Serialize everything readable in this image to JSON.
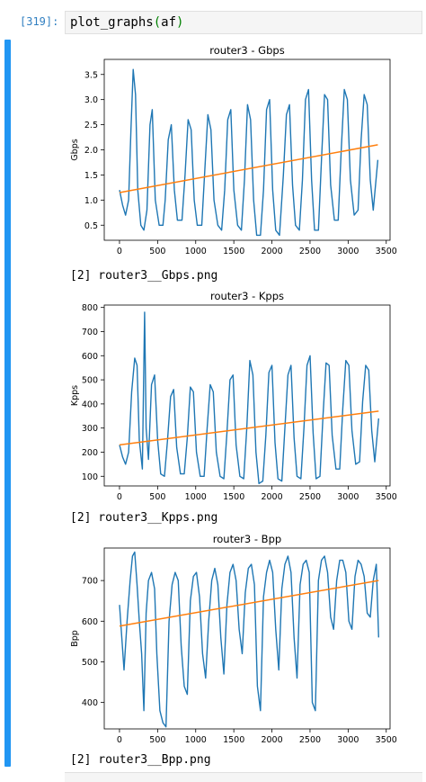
{
  "cell": {
    "prompt": "[319]:",
    "code_fn": "plot_graphs",
    "code_open": "(",
    "code_arg": "af",
    "code_close": ")"
  },
  "outputs": [
    {
      "text": "[2] router3__Gbps.png"
    },
    {
      "text": "[2] router3__Kpps.png"
    },
    {
      "text": "[2] router3__Bpp.png"
    }
  ],
  "colors": {
    "series": "#1f77b4",
    "trend": "#ff7f0e",
    "prompt": "#307fc1",
    "collapser": "#2196f3"
  },
  "chart_data": [
    {
      "type": "line",
      "title": "router3 - Gbps",
      "xlabel": "",
      "ylabel": "Gbps",
      "xlim": [
        -200,
        3550
      ],
      "ylim": [
        0.2,
        3.8
      ],
      "xticks": [
        0,
        500,
        1000,
        1500,
        2000,
        2500,
        3000,
        3500
      ],
      "yticks": [
        0.5,
        1.0,
        1.5,
        2.0,
        2.5,
        3.0,
        3.5
      ],
      "ytick_labels": [
        "0.5",
        "1.0",
        "1.5",
        "2.0",
        "2.5",
        "3.0",
        "3.5"
      ],
      "series": [
        {
          "points": [
            [
              0,
              1.2
            ],
            [
              40,
              0.9
            ],
            [
              80,
              0.7
            ],
            [
              120,
              1.0
            ],
            [
              150,
              2.4
            ],
            [
              180,
              3.6
            ],
            [
              210,
              3.1
            ],
            [
              240,
              1.2
            ],
            [
              280,
              0.5
            ],
            [
              320,
              0.4
            ],
            [
              360,
              0.8
            ],
            [
              400,
              2.5
            ],
            [
              430,
              2.8
            ],
            [
              470,
              1.0
            ],
            [
              520,
              0.5
            ],
            [
              570,
              0.5
            ],
            [
              600,
              1.0
            ],
            [
              640,
              2.2
            ],
            [
              680,
              2.5
            ],
            [
              720,
              1.2
            ],
            [
              760,
              0.6
            ],
            [
              820,
              0.6
            ],
            [
              860,
              1.5
            ],
            [
              900,
              2.6
            ],
            [
              940,
              2.4
            ],
            [
              980,
              1.0
            ],
            [
              1020,
              0.5
            ],
            [
              1080,
              0.5
            ],
            [
              1120,
              1.6
            ],
            [
              1160,
              2.7
            ],
            [
              1200,
              2.4
            ],
            [
              1240,
              1.0
            ],
            [
              1290,
              0.5
            ],
            [
              1340,
              0.4
            ],
            [
              1380,
              1.2
            ],
            [
              1420,
              2.6
            ],
            [
              1460,
              2.8
            ],
            [
              1500,
              1.2
            ],
            [
              1550,
              0.5
            ],
            [
              1600,
              0.4
            ],
            [
              1640,
              1.4
            ],
            [
              1680,
              2.9
            ],
            [
              1720,
              2.6
            ],
            [
              1760,
              1.0
            ],
            [
              1800,
              0.3
            ],
            [
              1850,
              0.3
            ],
            [
              1890,
              1.2
            ],
            [
              1930,
              2.8
            ],
            [
              1970,
              3.0
            ],
            [
              2010,
              1.2
            ],
            [
              2050,
              0.4
            ],
            [
              2100,
              0.3
            ],
            [
              2150,
              1.5
            ],
            [
              2190,
              2.7
            ],
            [
              2230,
              2.9
            ],
            [
              2270,
              1.3
            ],
            [
              2310,
              0.5
            ],
            [
              2360,
              0.4
            ],
            [
              2400,
              1.4
            ],
            [
              2440,
              3.0
            ],
            [
              2480,
              3.2
            ],
            [
              2520,
              1.4
            ],
            [
              2560,
              0.4
            ],
            [
              2610,
              0.4
            ],
            [
              2650,
              1.8
            ],
            [
              2690,
              3.1
            ],
            [
              2730,
              3.0
            ],
            [
              2770,
              1.3
            ],
            [
              2820,
              0.6
            ],
            [
              2870,
              0.6
            ],
            [
              2910,
              2.0
            ],
            [
              2950,
              3.2
            ],
            [
              2990,
              3.0
            ],
            [
              3030,
              1.4
            ],
            [
              3080,
              0.7
            ],
            [
              3130,
              0.8
            ],
            [
              3170,
              2.2
            ],
            [
              3210,
              3.1
            ],
            [
              3250,
              2.9
            ],
            [
              3290,
              1.4
            ],
            [
              3330,
              0.8
            ],
            [
              3390,
              1.8
            ]
          ]
        },
        {
          "points": [
            [
              0,
              1.15
            ],
            [
              3390,
              2.1
            ]
          ]
        }
      ]
    },
    {
      "type": "line",
      "title": "router3 - Kpps",
      "xlabel": "",
      "ylabel": "Kpps",
      "xlim": [
        -200,
        3550
      ],
      "ylim": [
        60,
        810
      ],
      "xticks": [
        0,
        500,
        1000,
        1500,
        2000,
        2500,
        3000,
        3500
      ],
      "yticks": [
        100,
        200,
        300,
        400,
        500,
        600,
        700,
        800
      ],
      "ytick_labels": [
        "100",
        "200",
        "300",
        "400",
        "500",
        "600",
        "700",
        "800"
      ],
      "series": [
        {
          "points": [
            [
              0,
              230
            ],
            [
              40,
              180
            ],
            [
              80,
              150
            ],
            [
              120,
              200
            ],
            [
              160,
              450
            ],
            [
              200,
              590
            ],
            [
              230,
              560
            ],
            [
              260,
              250
            ],
            [
              300,
              130
            ],
            [
              330,
              780
            ],
            [
              350,
              300
            ],
            [
              380,
              170
            ],
            [
              420,
              480
            ],
            [
              460,
              520
            ],
            [
              500,
              250
            ],
            [
              540,
              110
            ],
            [
              590,
              100
            ],
            [
              630,
              250
            ],
            [
              670,
              430
            ],
            [
              710,
              460
            ],
            [
              750,
              220
            ],
            [
              800,
              110
            ],
            [
              850,
              110
            ],
            [
              890,
              260
            ],
            [
              930,
              470
            ],
            [
              970,
              450
            ],
            [
              1010,
              200
            ],
            [
              1060,
              100
            ],
            [
              1110,
              100
            ],
            [
              1150,
              300
            ],
            [
              1190,
              480
            ],
            [
              1230,
              450
            ],
            [
              1270,
              200
            ],
            [
              1320,
              100
            ],
            [
              1370,
              90
            ],
            [
              1410,
              280
            ],
            [
              1450,
              500
            ],
            [
              1490,
              520
            ],
            [
              1530,
              230
            ],
            [
              1580,
              100
            ],
            [
              1630,
              90
            ],
            [
              1670,
              300
            ],
            [
              1710,
              580
            ],
            [
              1750,
              520
            ],
            [
              1790,
              200
            ],
            [
              1830,
              70
            ],
            [
              1880,
              80
            ],
            [
              1920,
              270
            ],
            [
              1960,
              530
            ],
            [
              2000,
              560
            ],
            [
              2040,
              240
            ],
            [
              2080,
              90
            ],
            [
              2130,
              80
            ],
            [
              2170,
              300
            ],
            [
              2210,
              520
            ],
            [
              2250,
              560
            ],
            [
              2290,
              260
            ],
            [
              2330,
              100
            ],
            [
              2380,
              90
            ],
            [
              2420,
              300
            ],
            [
              2460,
              560
            ],
            [
              2500,
              600
            ],
            [
              2540,
              280
            ],
            [
              2580,
              90
            ],
            [
              2630,
              100
            ],
            [
              2670,
              350
            ],
            [
              2710,
              570
            ],
            [
              2750,
              560
            ],
            [
              2790,
              270
            ],
            [
              2840,
              130
            ],
            [
              2890,
              130
            ],
            [
              2930,
              380
            ],
            [
              2970,
              580
            ],
            [
              3010,
              560
            ],
            [
              3050,
              290
            ],
            [
              3100,
              150
            ],
            [
              3150,
              160
            ],
            [
              3190,
              410
            ],
            [
              3230,
              560
            ],
            [
              3270,
              540
            ],
            [
              3310,
              290
            ],
            [
              3350,
              160
            ],
            [
              3400,
              340
            ]
          ]
        },
        {
          "points": [
            [
              0,
              230
            ],
            [
              3400,
              370
            ]
          ]
        }
      ]
    },
    {
      "type": "line",
      "title": "router3 - Bpp",
      "xlabel": "",
      "ylabel": "Bpp",
      "xlim": [
        -200,
        3550
      ],
      "ylim": [
        335,
        780
      ],
      "xticks": [
        0,
        500,
        1000,
        1500,
        2000,
        2500,
        3000,
        3500
      ],
      "yticks": [
        400,
        500,
        600,
        700
      ],
      "ytick_labels": [
        "400",
        "500",
        "600",
        "700"
      ],
      "series": [
        {
          "points": [
            [
              0,
              640
            ],
            [
              30,
              560
            ],
            [
              60,
              480
            ],
            [
              100,
              600
            ],
            [
              140,
              700
            ],
            [
              170,
              760
            ],
            [
              200,
              770
            ],
            [
              230,
              690
            ],
            [
              260,
              600
            ],
            [
              290,
              520
            ],
            [
              320,
              380
            ],
            [
              350,
              620
            ],
            [
              380,
              700
            ],
            [
              420,
              720
            ],
            [
              460,
              680
            ],
            [
              490,
              520
            ],
            [
              530,
              380
            ],
            [
              570,
              350
            ],
            [
              610,
              340
            ],
            [
              650,
              600
            ],
            [
              690,
              690
            ],
            [
              730,
              720
            ],
            [
              770,
              700
            ],
            [
              810,
              540
            ],
            [
              850,
              440
            ],
            [
              890,
              420
            ],
            [
              930,
              650
            ],
            [
              970,
              710
            ],
            [
              1010,
              720
            ],
            [
              1050,
              660
            ],
            [
              1090,
              520
            ],
            [
              1130,
              460
            ],
            [
              1170,
              600
            ],
            [
              1210,
              700
            ],
            [
              1250,
              730
            ],
            [
              1290,
              690
            ],
            [
              1330,
              560
            ],
            [
              1370,
              470
            ],
            [
              1410,
              640
            ],
            [
              1450,
              720
            ],
            [
              1490,
              740
            ],
            [
              1530,
              700
            ],
            [
              1570,
              580
            ],
            [
              1610,
              520
            ],
            [
              1650,
              670
            ],
            [
              1690,
              730
            ],
            [
              1730,
              740
            ],
            [
              1770,
              690
            ],
            [
              1810,
              440
            ],
            [
              1850,
              380
            ],
            [
              1890,
              660
            ],
            [
              1930,
              720
            ],
            [
              1970,
              750
            ],
            [
              2010,
              720
            ],
            [
              2050,
              580
            ],
            [
              2090,
              480
            ],
            [
              2130,
              680
            ],
            [
              2170,
              740
            ],
            [
              2210,
              760
            ],
            [
              2250,
              720
            ],
            [
              2290,
              560
            ],
            [
              2330,
              460
            ],
            [
              2370,
              690
            ],
            [
              2410,
              740
            ],
            [
              2450,
              750
            ],
            [
              2490,
              720
            ],
            [
              2530,
              400
            ],
            [
              2570,
              380
            ],
            [
              2610,
              700
            ],
            [
              2650,
              750
            ],
            [
              2690,
              760
            ],
            [
              2730,
              720
            ],
            [
              2770,
              610
            ],
            [
              2810,
              580
            ],
            [
              2850,
              700
            ],
            [
              2890,
              750
            ],
            [
              2930,
              750
            ],
            [
              2970,
              720
            ],
            [
              3010,
              600
            ],
            [
              3050,
              580
            ],
            [
              3090,
              710
            ],
            [
              3130,
              750
            ],
            [
              3170,
              740
            ],
            [
              3210,
              710
            ],
            [
              3250,
              620
            ],
            [
              3290,
              610
            ],
            [
              3330,
              700
            ],
            [
              3370,
              740
            ],
            [
              3400,
              560
            ]
          ]
        },
        {
          "points": [
            [
              0,
              588
            ],
            [
              3400,
              700
            ]
          ]
        }
      ]
    }
  ]
}
